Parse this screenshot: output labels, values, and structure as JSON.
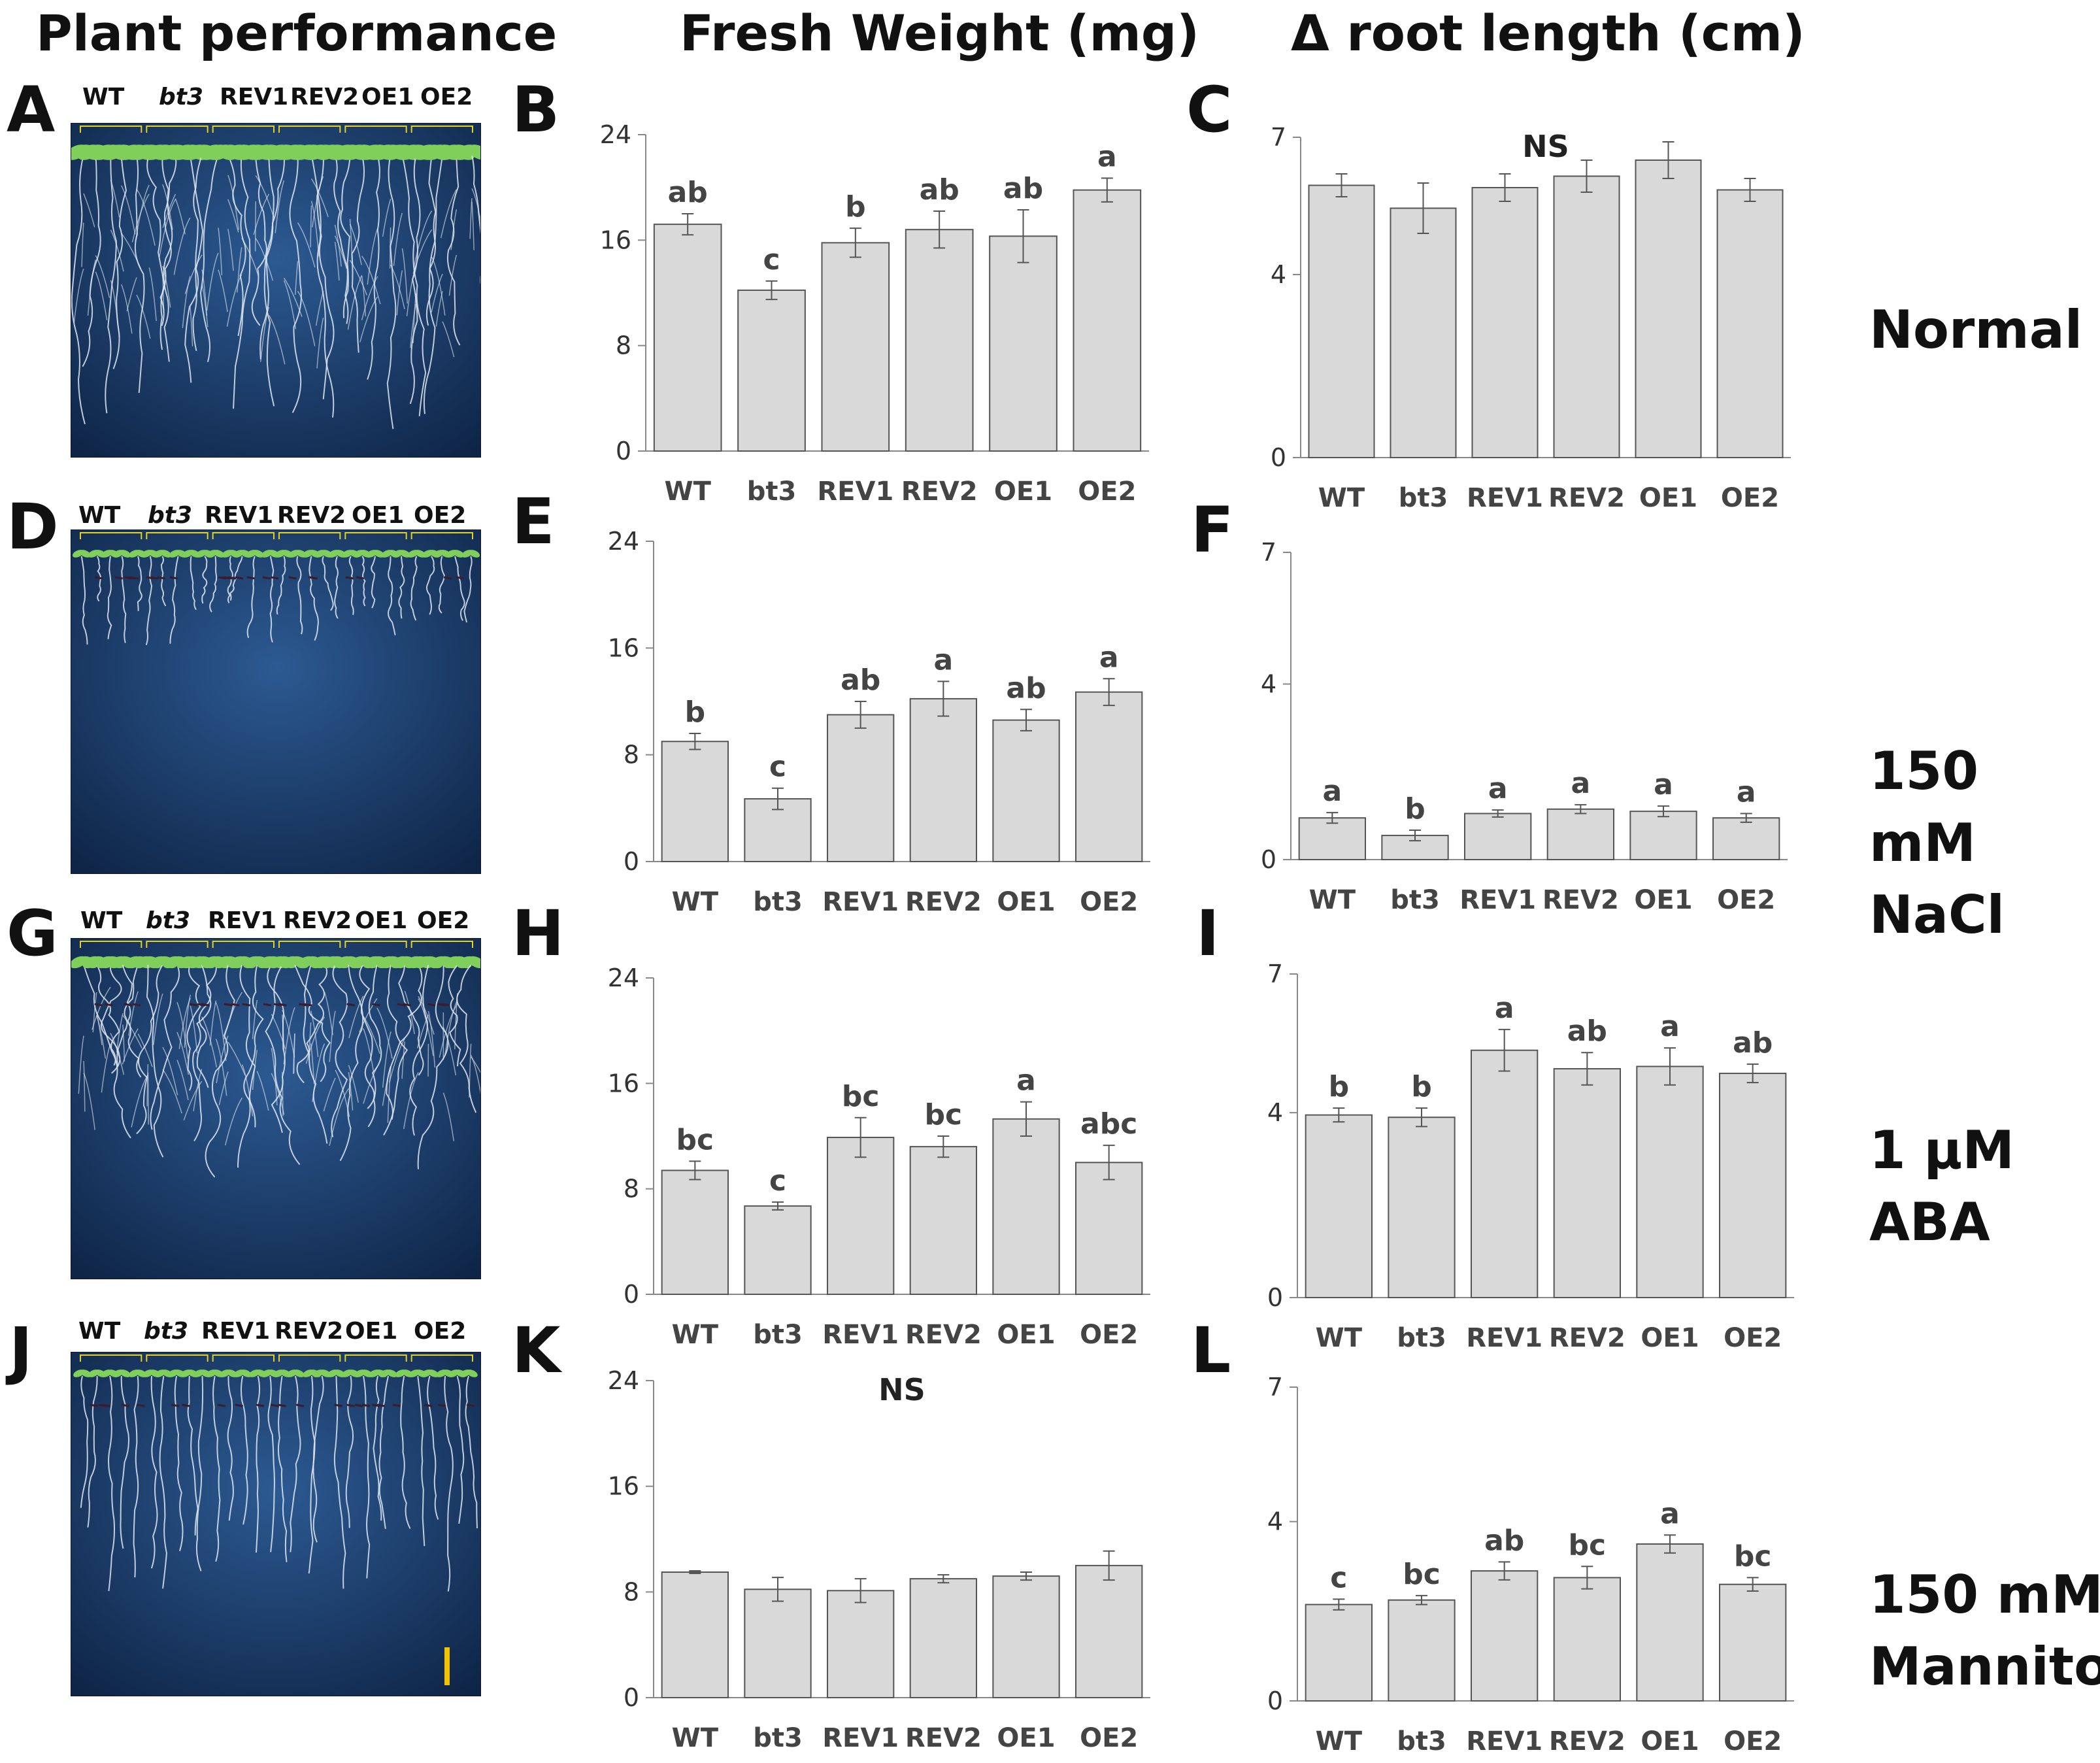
{
  "headers": {
    "plant": "Plant performance",
    "fresh_weight": "Fresh Weight (mg)",
    "root_length": "Δ root length (cm)"
  },
  "conditions": [
    {
      "line1": "Normal",
      "line2": ""
    },
    {
      "line1": "150 mM",
      "line2": "NaCl"
    },
    {
      "line1": "1 µM",
      "line2": "ABA"
    },
    {
      "line1": "150 mM",
      "line2": "Mannitol"
    }
  ],
  "photo_panels": [
    {
      "letter": "A",
      "genotypes": [
        "WT",
        "bt3",
        "REV1",
        "REV2",
        "OE1",
        "OE2"
      ]
    },
    {
      "letter": "D",
      "genotypes": [
        "WT",
        "bt3",
        "REV1",
        "REV2",
        "OE1",
        "OE2"
      ]
    },
    {
      "letter": "G",
      "genotypes": [
        "WT",
        "bt3",
        "REV1",
        "REV2",
        "OE1",
        "OE2"
      ]
    },
    {
      "letter": "J",
      "genotypes": [
        "WT",
        "bt3",
        "REV1",
        "REV2",
        "OE1",
        "OE2"
      ]
    }
  ],
  "colors": {
    "bar_fill": "#d9d9d9",
    "bar_stroke": "#555555",
    "axis": "#888888",
    "photo_bg": "#1c3d6e",
    "leaf": "#7fcf5a",
    "root": "#dfe6f0",
    "bracket": "#e6d21a"
  },
  "chart_data": [
    {
      "id": "B",
      "type": "bar",
      "categories": [
        "WT",
        "bt3",
        "REV1",
        "REV2",
        "OE1",
        "OE2"
      ],
      "values": [
        17.2,
        12.2,
        15.8,
        16.8,
        16.3,
        19.8
      ],
      "errors": [
        0.8,
        0.7,
        1.1,
        1.4,
        2.0,
        0.9
      ],
      "letters": [
        "ab",
        "c",
        "b",
        "ab",
        "ab",
        "a"
      ],
      "note": "",
      "ylim": [
        0,
        24
      ],
      "yticks": [
        "0",
        "8",
        "16",
        "24"
      ]
    },
    {
      "id": "C",
      "type": "bar",
      "categories": [
        "WT",
        "bt3",
        "REV1",
        "REV2",
        "OE1",
        "OE2"
      ],
      "values": [
        5.95,
        5.45,
        5.9,
        6.15,
        6.5,
        5.85
      ],
      "errors": [
        0.25,
        0.55,
        0.3,
        0.35,
        0.4,
        0.25
      ],
      "letters": [
        "",
        "",
        "",
        "",
        "",
        ""
      ],
      "note": "NS",
      "ylim": [
        0,
        7
      ],
      "yticks": [
        "0",
        "4",
        "7"
      ]
    },
    {
      "id": "E",
      "type": "bar",
      "categories": [
        "WT",
        "bt3",
        "REV1",
        "REV2",
        "OE1",
        "OE2"
      ],
      "values": [
        9.0,
        4.7,
        11.0,
        12.2,
        10.6,
        12.7
      ],
      "errors": [
        0.6,
        0.8,
        1.0,
        1.3,
        0.8,
        1.0
      ],
      "letters": [
        "b",
        "c",
        "ab",
        "a",
        "ab",
        "a"
      ],
      "note": "",
      "ylim": [
        0,
        24
      ],
      "yticks": [
        "0",
        "8",
        "16",
        "24"
      ]
    },
    {
      "id": "F",
      "type": "bar",
      "categories": [
        "WT",
        "bt3",
        "REV1",
        "REV2",
        "OE1",
        "OE2"
      ],
      "values": [
        0.95,
        0.55,
        1.05,
        1.15,
        1.1,
        0.95
      ],
      "errors": [
        0.12,
        0.12,
        0.08,
        0.1,
        0.12,
        0.1
      ],
      "letters": [
        "a",
        "b",
        "a",
        "a",
        "a",
        "a"
      ],
      "note": "",
      "ylim": [
        0,
        7
      ],
      "yticks": [
        "0",
        "4",
        "7"
      ]
    },
    {
      "id": "H",
      "type": "bar",
      "categories": [
        "WT",
        "bt3",
        "REV1",
        "REV2",
        "OE1",
        "OE2"
      ],
      "values": [
        9.4,
        6.7,
        11.9,
        11.2,
        13.3,
        10.0
      ],
      "errors": [
        0.7,
        0.3,
        1.5,
        0.8,
        1.3,
        1.3
      ],
      "letters": [
        "bc",
        "c",
        "bc",
        "bc",
        "a",
        "abc"
      ],
      "note": "",
      "ylim": [
        0,
        24
      ],
      "yticks": [
        "0",
        "8",
        "16",
        "24"
      ]
    },
    {
      "id": "I",
      "type": "bar",
      "categories": [
        "WT",
        "bt3",
        "REV1",
        "REV2",
        "OE1",
        "OE2"
      ],
      "values": [
        3.95,
        3.9,
        5.35,
        4.95,
        5.0,
        4.85
      ],
      "errors": [
        0.15,
        0.2,
        0.45,
        0.35,
        0.4,
        0.2
      ],
      "letters": [
        "b",
        "b",
        "a",
        "ab",
        "a",
        "ab"
      ],
      "note": "",
      "ylim": [
        0,
        7
      ],
      "yticks": [
        "0",
        "4",
        "7"
      ]
    },
    {
      "id": "K",
      "type": "bar",
      "categories": [
        "WT",
        "bt3",
        "REV1",
        "REV2",
        "OE1",
        "OE2"
      ],
      "values": [
        9.5,
        8.2,
        8.1,
        9.0,
        9.2,
        10.0
      ],
      "errors": [
        0.1,
        0.9,
        0.9,
        0.3,
        0.3,
        1.1
      ],
      "letters": [
        "",
        "",
        "",
        "",
        "",
        ""
      ],
      "note": "NS",
      "ylim": [
        0,
        24
      ],
      "yticks": [
        "0",
        "8",
        "16",
        "24"
      ]
    },
    {
      "id": "L",
      "type": "bar",
      "categories": [
        "WT",
        "bt3",
        "REV1",
        "REV2",
        "OE1",
        "OE2"
      ],
      "values": [
        2.15,
        2.25,
        2.9,
        2.75,
        3.5,
        2.6
      ],
      "errors": [
        0.12,
        0.1,
        0.2,
        0.25,
        0.2,
        0.15
      ],
      "letters": [
        "c",
        "bc",
        "ab",
        "bc",
        "a",
        "bc"
      ],
      "note": "",
      "ylim": [
        0,
        7
      ],
      "yticks": [
        "0",
        "4",
        "7"
      ]
    }
  ]
}
